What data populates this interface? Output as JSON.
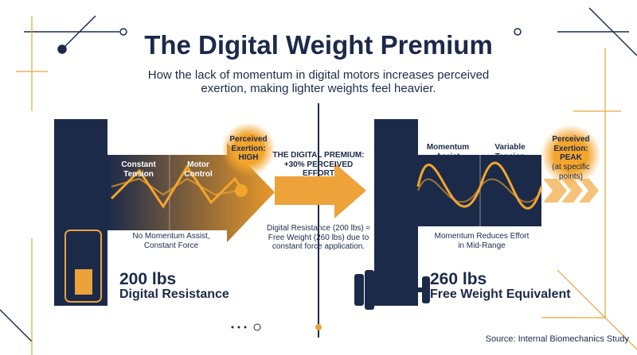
{
  "header": {
    "title": "The Digital Weight Premium",
    "subtitle": "How the lack of momentum in digital motors increases perceived exertion, making lighter weights feel heavier."
  },
  "left": {
    "label_1": "Constant Tension",
    "label_2": "Motor Control",
    "badge": "Perceived Exertion: HIGH",
    "caption": "No Momentum Assist, Constant Force",
    "weight": "200 lbs",
    "weight_label": "Digital Resistance"
  },
  "middle": {
    "headline": "THE DIGITAL PREMIUM: +30% PERCEIVED EFFORT",
    "caption": "Digital Resistance (200 lbs) ≈ Free Weight (260 lbs) due to constant force application."
  },
  "right": {
    "label_1": "Momentum Assist",
    "label_2": "Variable Tension",
    "badge": "Perceived Exertion: PEAK",
    "badge_note": "(at specific points)",
    "caption": "Momentum Reduces Effort in Mid-Range",
    "weight": "260 lbs",
    "weight_label": "Free Weight Equivalent"
  },
  "footer": {
    "source": "Source: Internal Biomechanics Study"
  }
}
